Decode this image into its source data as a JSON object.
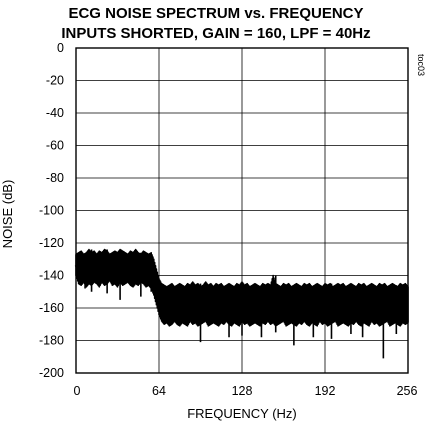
{
  "chart_data": {
    "type": "line",
    "title_lines": [
      "ECG NOISE SPECTRUM vs. FREQUENCY",
      "INPUTS SHORTED, GAIN = 160, LPF = 40Hz"
    ],
    "xlabel": "FREQUENCY (Hz)",
    "ylabel": "NOISE (dB)",
    "figure_tag": "toc03",
    "xlim": [
      0,
      256
    ],
    "ylim": [
      -200,
      0
    ],
    "x_ticks": [
      0,
      64,
      128,
      192,
      256
    ],
    "x_tick_labels": [
      "0",
      "64",
      "128",
      "192",
      "256"
    ],
    "y_ticks": [
      0,
      -20,
      -40,
      -60,
      -80,
      -100,
      -120,
      -140,
      -160,
      -180,
      -200
    ],
    "y_tick_labels": [
      "0",
      "-20",
      "-40",
      "-60",
      "-80",
      "-100",
      "-120",
      "-140",
      "-160",
      "-180",
      "-200"
    ],
    "grid": true,
    "series_color": "#000000",
    "series": [
      {
        "x": [
          0,
          2,
          4,
          6,
          8,
          10,
          12,
          14,
          16,
          18,
          20,
          22,
          24,
          26,
          28,
          30,
          32,
          34,
          36,
          38,
          40,
          42,
          44,
          46,
          48,
          50,
          52,
          54,
          56,
          58,
          60,
          62,
          64,
          66,
          68,
          70,
          72,
          74,
          76,
          78,
          80,
          82,
          84,
          86,
          88,
          90,
          92,
          94,
          96,
          98,
          100,
          102,
          104,
          106,
          108,
          110,
          112,
          114,
          116,
          118,
          120,
          122,
          124,
          126,
          128,
          130,
          132,
          134,
          136,
          138,
          140,
          142,
          144,
          146,
          148,
          150,
          152,
          154,
          156,
          158,
          160,
          162,
          164,
          166,
          168,
          170,
          172,
          174,
          176,
          178,
          180,
          182,
          184,
          186,
          188,
          190,
          192,
          194,
          196,
          198,
          200,
          202,
          204,
          206,
          208,
          210,
          212,
          214,
          216,
          218,
          220,
          222,
          224,
          226,
          228,
          230,
          232,
          234,
          236,
          238,
          240,
          242,
          244,
          246,
          248,
          250,
          252,
          254,
          256
        ],
        "y_upper": [
          -127,
          -126,
          -125,
          -127,
          -126,
          -124,
          -126,
          -125,
          -127,
          -125,
          -126,
          -124,
          -125,
          -127,
          -126,
          -125,
          -126,
          -124,
          -125,
          -126,
          -127,
          -125,
          -126,
          -124,
          -126,
          -127,
          -125,
          -126,
          -127,
          -126,
          -130,
          -136,
          -142,
          -145,
          -146,
          -147,
          -146,
          -145,
          -147,
          -146,
          -145,
          -146,
          -147,
          -145,
          -146,
          -144,
          -146,
          -145,
          -147,
          -146,
          -144,
          -146,
          -145,
          -147,
          -145,
          -146,
          -145,
          -147,
          -146,
          -145,
          -146,
          -147,
          -145,
          -146,
          -144,
          -146,
          -145,
          -147,
          -146,
          -145,
          -146,
          -147,
          -145,
          -146,
          -145,
          -146,
          -140,
          -145,
          -146,
          -147,
          -145,
          -146,
          -145,
          -147,
          -146,
          -145,
          -146,
          -147,
          -145,
          -146,
          -145,
          -147,
          -146,
          -145,
          -146,
          -147,
          -145,
          -146,
          -145,
          -147,
          -146,
          -145,
          -146,
          -145,
          -147,
          -146,
          -145,
          -146,
          -147,
          -145,
          -146,
          -145,
          -147,
          -146,
          -145,
          -146,
          -147,
          -145,
          -146,
          -145,
          -147,
          -146,
          -145,
          -146,
          -147,
          -145,
          -146,
          -145,
          -147
        ],
        "y_lower": [
          -140,
          -145,
          -146,
          -144,
          -147,
          -145,
          -146,
          -144,
          -145,
          -147,
          -144,
          -146,
          -145,
          -143,
          -146,
          -145,
          -147,
          -144,
          -146,
          -145,
          -144,
          -146,
          -147,
          -145,
          -146,
          -144,
          -145,
          -147,
          -146,
          -148,
          -152,
          -158,
          -164,
          -168,
          -170,
          -169,
          -171,
          -170,
          -168,
          -170,
          -171,
          -169,
          -170,
          -171,
          -168,
          -170,
          -169,
          -171,
          -170,
          -169,
          -168,
          -171,
          -170,
          -169,
          -170,
          -171,
          -169,
          -170,
          -168,
          -170,
          -171,
          -169,
          -170,
          -171,
          -168,
          -170,
          -169,
          -171,
          -170,
          -169,
          -170,
          -171,
          -169,
          -170,
          -168,
          -170,
          -169,
          -171,
          -170,
          -169,
          -168,
          -171,
          -170,
          -169,
          -170,
          -171,
          -169,
          -170,
          -168,
          -170,
          -171,
          -169,
          -170,
          -171,
          -168,
          -170,
          -169,
          -171,
          -170,
          -169,
          -168,
          -171,
          -170,
          -169,
          -170,
          -171,
          -169,
          -170,
          -168,
          -170,
          -171,
          -169,
          -170,
          -171,
          -168,
          -170,
          -169,
          -171,
          -170,
          -169,
          -168,
          -171,
          -170,
          -169,
          -170,
          -171,
          -169,
          -170,
          -169
        ],
        "dips": [
          {
            "x": 7,
            "y": -148
          },
          {
            "x": 12,
            "y": -150
          },
          {
            "x": 24,
            "y": -151
          },
          {
            "x": 34,
            "y": -155
          },
          {
            "x": 42,
            "y": -145
          },
          {
            "x": 50,
            "y": -153
          },
          {
            "x": 58,
            "y": -150
          },
          {
            "x": 96,
            "y": -181
          },
          {
            "x": 118,
            "y": -178
          },
          {
            "x": 128,
            "y": -177
          },
          {
            "x": 143,
            "y": -178
          },
          {
            "x": 154,
            "y": -175
          },
          {
            "x": 168,
            "y": -183
          },
          {
            "x": 183,
            "y": -178
          },
          {
            "x": 197,
            "y": -179
          },
          {
            "x": 212,
            "y": -176
          },
          {
            "x": 221,
            "y": -178
          },
          {
            "x": 237,
            "y": -191
          },
          {
            "x": 247,
            "y": -176
          }
        ]
      }
    ]
  }
}
